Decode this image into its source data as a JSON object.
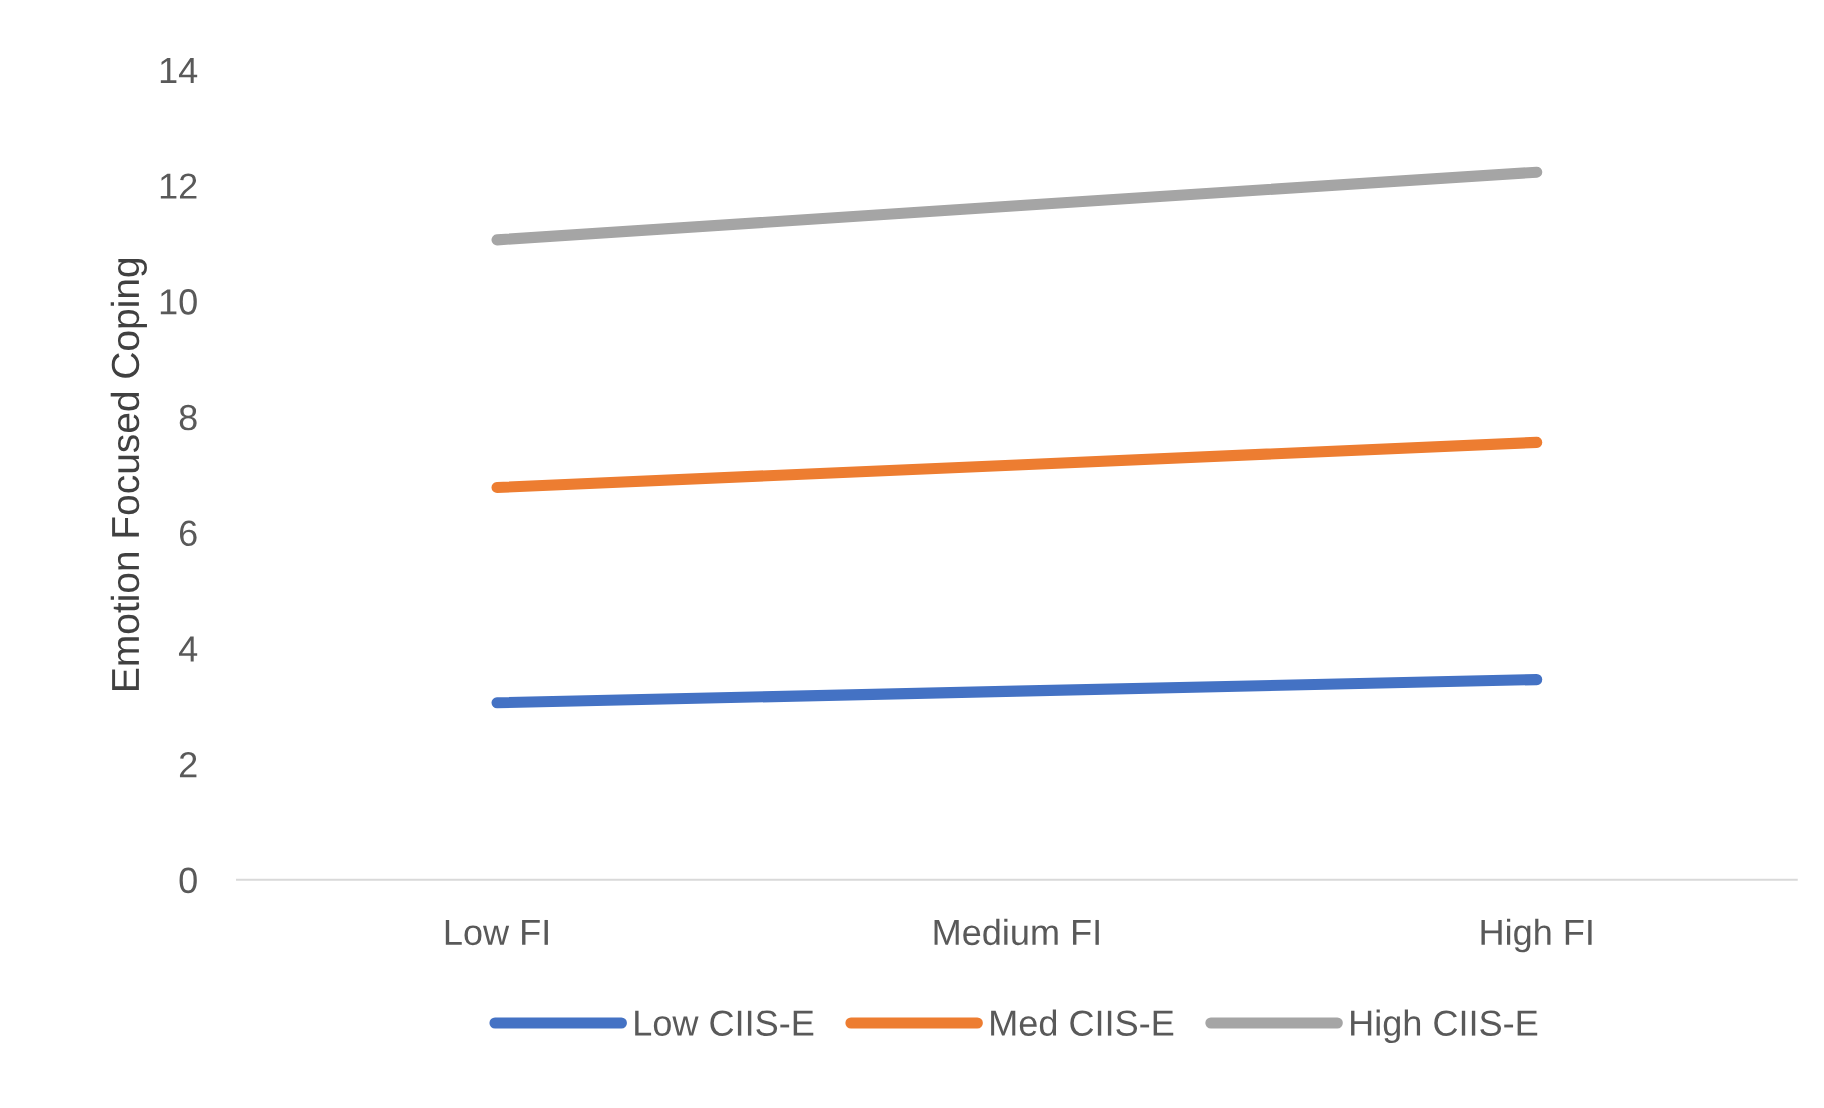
{
  "chart_data": {
    "type": "line",
    "ylabel": "Emotion Focused Coping",
    "categories": [
      "Low FI",
      "Medium FI",
      "High FI"
    ],
    "series": [
      {
        "name": "Low CIIS-E",
        "color": "#4472c4",
        "values": [
          3.06,
          3.26,
          3.46
        ]
      },
      {
        "name": "Med CIIS-E",
        "color": "#ed7d31",
        "values": [
          6.78,
          7.17,
          7.56
        ]
      },
      {
        "name": "High CIIS-E",
        "color": "#a5a5a5",
        "values": [
          11.06,
          11.65,
          12.23
        ]
      }
    ],
    "ylim": [
      0,
      14
    ],
    "yticks": [
      0,
      2,
      4,
      6,
      8,
      10,
      12,
      14
    ],
    "grid": false,
    "legend": "bottom",
    "marker": "none",
    "line_style": "solid"
  }
}
